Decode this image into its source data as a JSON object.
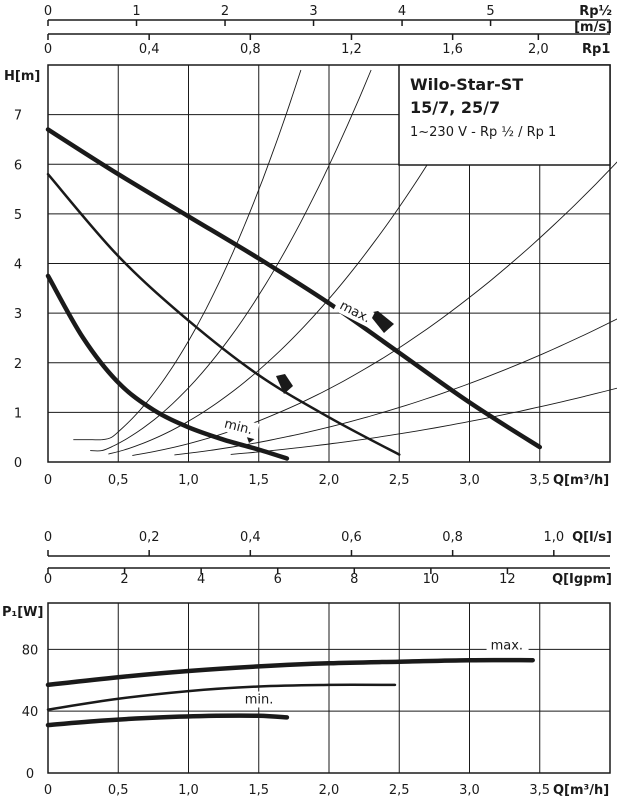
{
  "chart_data": [
    {
      "type": "line",
      "title": "Wilo-Star-ST",
      "subtitle": "15/7, 25/7",
      "spec": "1~230 V - Rp ½ / Rp 1",
      "xlabel": "Q[m³/h]",
      "ylabel": "H[m]",
      "xlim": [
        0,
        4
      ],
      "ylim": [
        0,
        8
      ],
      "grid": true,
      "x_ticks": [
        {
          "v": 0,
          "label": "0"
        },
        {
          "v": 0.5,
          "label": "0,5"
        },
        {
          "v": 1.0,
          "label": "1,0"
        },
        {
          "v": 1.5,
          "label": "1,5"
        },
        {
          "v": 2.0,
          "label": "2,0"
        },
        {
          "v": 2.5,
          "label": "2,5"
        },
        {
          "v": 3.0,
          "label": "3,0"
        },
        {
          "v": 3.5,
          "label": "3,5"
        }
      ],
      "y_ticks": [
        {
          "v": 0,
          "label": "0"
        },
        {
          "v": 1,
          "label": "1"
        },
        {
          "v": 2,
          "label": "2"
        },
        {
          "v": 3,
          "label": "3"
        },
        {
          "v": 4,
          "label": "4"
        },
        {
          "v": 5,
          "label": "5"
        },
        {
          "v": 6,
          "label": "6"
        },
        {
          "v": 7,
          "label": "7"
        }
      ],
      "top_axes": [
        {
          "unit": "Rp½",
          "ticks": [
            {
              "q": 0,
              "label": "0"
            },
            {
              "q": 0.63,
              "label": "1"
            },
            {
              "q": 1.26,
              "label": "2"
            },
            {
              "q": 1.89,
              "label": "3"
            },
            {
              "q": 2.52,
              "label": "4"
            },
            {
              "q": 3.15,
              "label": "5"
            }
          ]
        },
        {
          "unit": "[m/s]",
          "ticks": []
        },
        {
          "unit": "Rp1",
          "ticks": [
            {
              "q": 0,
              "label": "0"
            },
            {
              "q": 0.72,
              "label": "0,4"
            },
            {
              "q": 1.44,
              "label": "0,8"
            },
            {
              "q": 2.16,
              "label": "1,2"
            },
            {
              "q": 2.88,
              "label": "1,6"
            },
            {
              "q": 3.49,
              "label": "2,0"
            }
          ]
        }
      ],
      "series": [
        {
          "name": "max.",
          "x": [
            0,
            0.5,
            1.0,
            1.5,
            2.0,
            2.5,
            3.0,
            3.5
          ],
          "y": [
            6.7,
            5.8,
            4.95,
            4.1,
            3.2,
            2.2,
            1.2,
            0.3
          ]
        },
        {
          "name": "",
          "x": [
            0,
            0.5,
            1.0,
            1.5,
            2.0,
            2.5
          ],
          "y": [
            5.8,
            4.15,
            2.85,
            1.75,
            0.9,
            0.15
          ]
        },
        {
          "name": "min.",
          "x": [
            0,
            0.25,
            0.5,
            0.75,
            1.0,
            1.25,
            1.5,
            1.7
          ],
          "y": [
            3.75,
            2.5,
            1.6,
            1.05,
            0.7,
            0.45,
            0.25,
            0.07
          ]
        }
      ],
      "curve_labels": [
        {
          "text": "max.",
          "x": 2.07,
          "y": 3.1,
          "angle": 27
        },
        {
          "text": "min.",
          "x": 1.25,
          "y": 0.7,
          "angle": 14
        }
      ],
      "system_curves": [
        {
          "x": [
            0.18,
            1.8
          ],
          "y": [
            0.45,
            7.9
          ]
        },
        {
          "x": [
            0.3,
            2.3
          ],
          "y": [
            0.23,
            7.9
          ]
        },
        {
          "x": [
            0.43,
            3.1
          ],
          "y": [
            0.16,
            7.9
          ]
        },
        {
          "x": [
            0.6,
            4.2
          ],
          "y": [
            0.13,
            6.5
          ]
        },
        {
          "x": [
            0.9,
            4.2
          ],
          "y": [
            0.11,
            3.1
          ]
        },
        {
          "x": [
            1.3,
            4.2
          ],
          "y": [
            0.09,
            1.6
          ]
        }
      ]
    },
    {
      "type": "line",
      "xlabel": "Q[m³/h]",
      "ylabel": "P₁[W]",
      "xlim": [
        0,
        4
      ],
      "ylim": [
        0,
        110
      ],
      "grid": true,
      "x_ticks": [
        {
          "v": 0,
          "label": "0"
        },
        {
          "v": 0.5,
          "label": "0,5"
        },
        {
          "v": 1.0,
          "label": "1,0"
        },
        {
          "v": 1.5,
          "label": "1,5"
        },
        {
          "v": 2.0,
          "label": "2,0"
        },
        {
          "v": 2.5,
          "label": "2,5"
        },
        {
          "v": 3.0,
          "label": "3,0"
        },
        {
          "v": 3.5,
          "label": "3,5"
        }
      ],
      "y_ticks": [
        {
          "v": 0,
          "label": "0"
        },
        {
          "v": 40,
          "label": "40"
        },
        {
          "v": 80,
          "label": "80"
        }
      ],
      "top_axes": [
        {
          "unit": "Q[l/s]",
          "ticks": [
            {
              "q": 0,
              "label": "0"
            },
            {
              "q": 0.72,
              "label": "0,2"
            },
            {
              "q": 1.44,
              "label": "0,4"
            },
            {
              "q": 2.16,
              "label": "0,6"
            },
            {
              "q": 2.88,
              "label": "0,8"
            },
            {
              "q": 3.6,
              "label": "1,0"
            }
          ]
        },
        {
          "unit": "Q[Igpm]",
          "ticks": [
            {
              "q": 0,
              "label": "0"
            },
            {
              "q": 0.545,
              "label": "2"
            },
            {
              "q": 1.09,
              "label": "4"
            },
            {
              "q": 1.635,
              "label": "6"
            },
            {
              "q": 2.18,
              "label": "8"
            },
            {
              "q": 2.725,
              "label": "10"
            },
            {
              "q": 3.27,
              "label": "12"
            }
          ]
        }
      ],
      "series": [
        {
          "name": "max.",
          "x": [
            0,
            0.5,
            1.0,
            1.5,
            2.0,
            2.5,
            3.0,
            3.45
          ],
          "y": [
            57,
            62,
            66,
            69,
            71,
            72,
            73,
            73
          ]
        },
        {
          "name": "",
          "x": [
            0,
            0.5,
            1.0,
            1.5,
            2.0,
            2.47
          ],
          "y": [
            41,
            48,
            53,
            56,
            57,
            57
          ]
        },
        {
          "name": "min.",
          "x": [
            0,
            0.4,
            0.8,
            1.2,
            1.5,
            1.7
          ],
          "y": [
            31,
            34,
            36,
            37,
            37,
            36
          ]
        }
      ],
      "curve_labels": [
        {
          "text": "max.",
          "x": 3.15,
          "y": 80,
          "angle": 0
        },
        {
          "text": "min.",
          "x": 1.4,
          "y": 45,
          "angle": 0
        }
      ]
    }
  ]
}
